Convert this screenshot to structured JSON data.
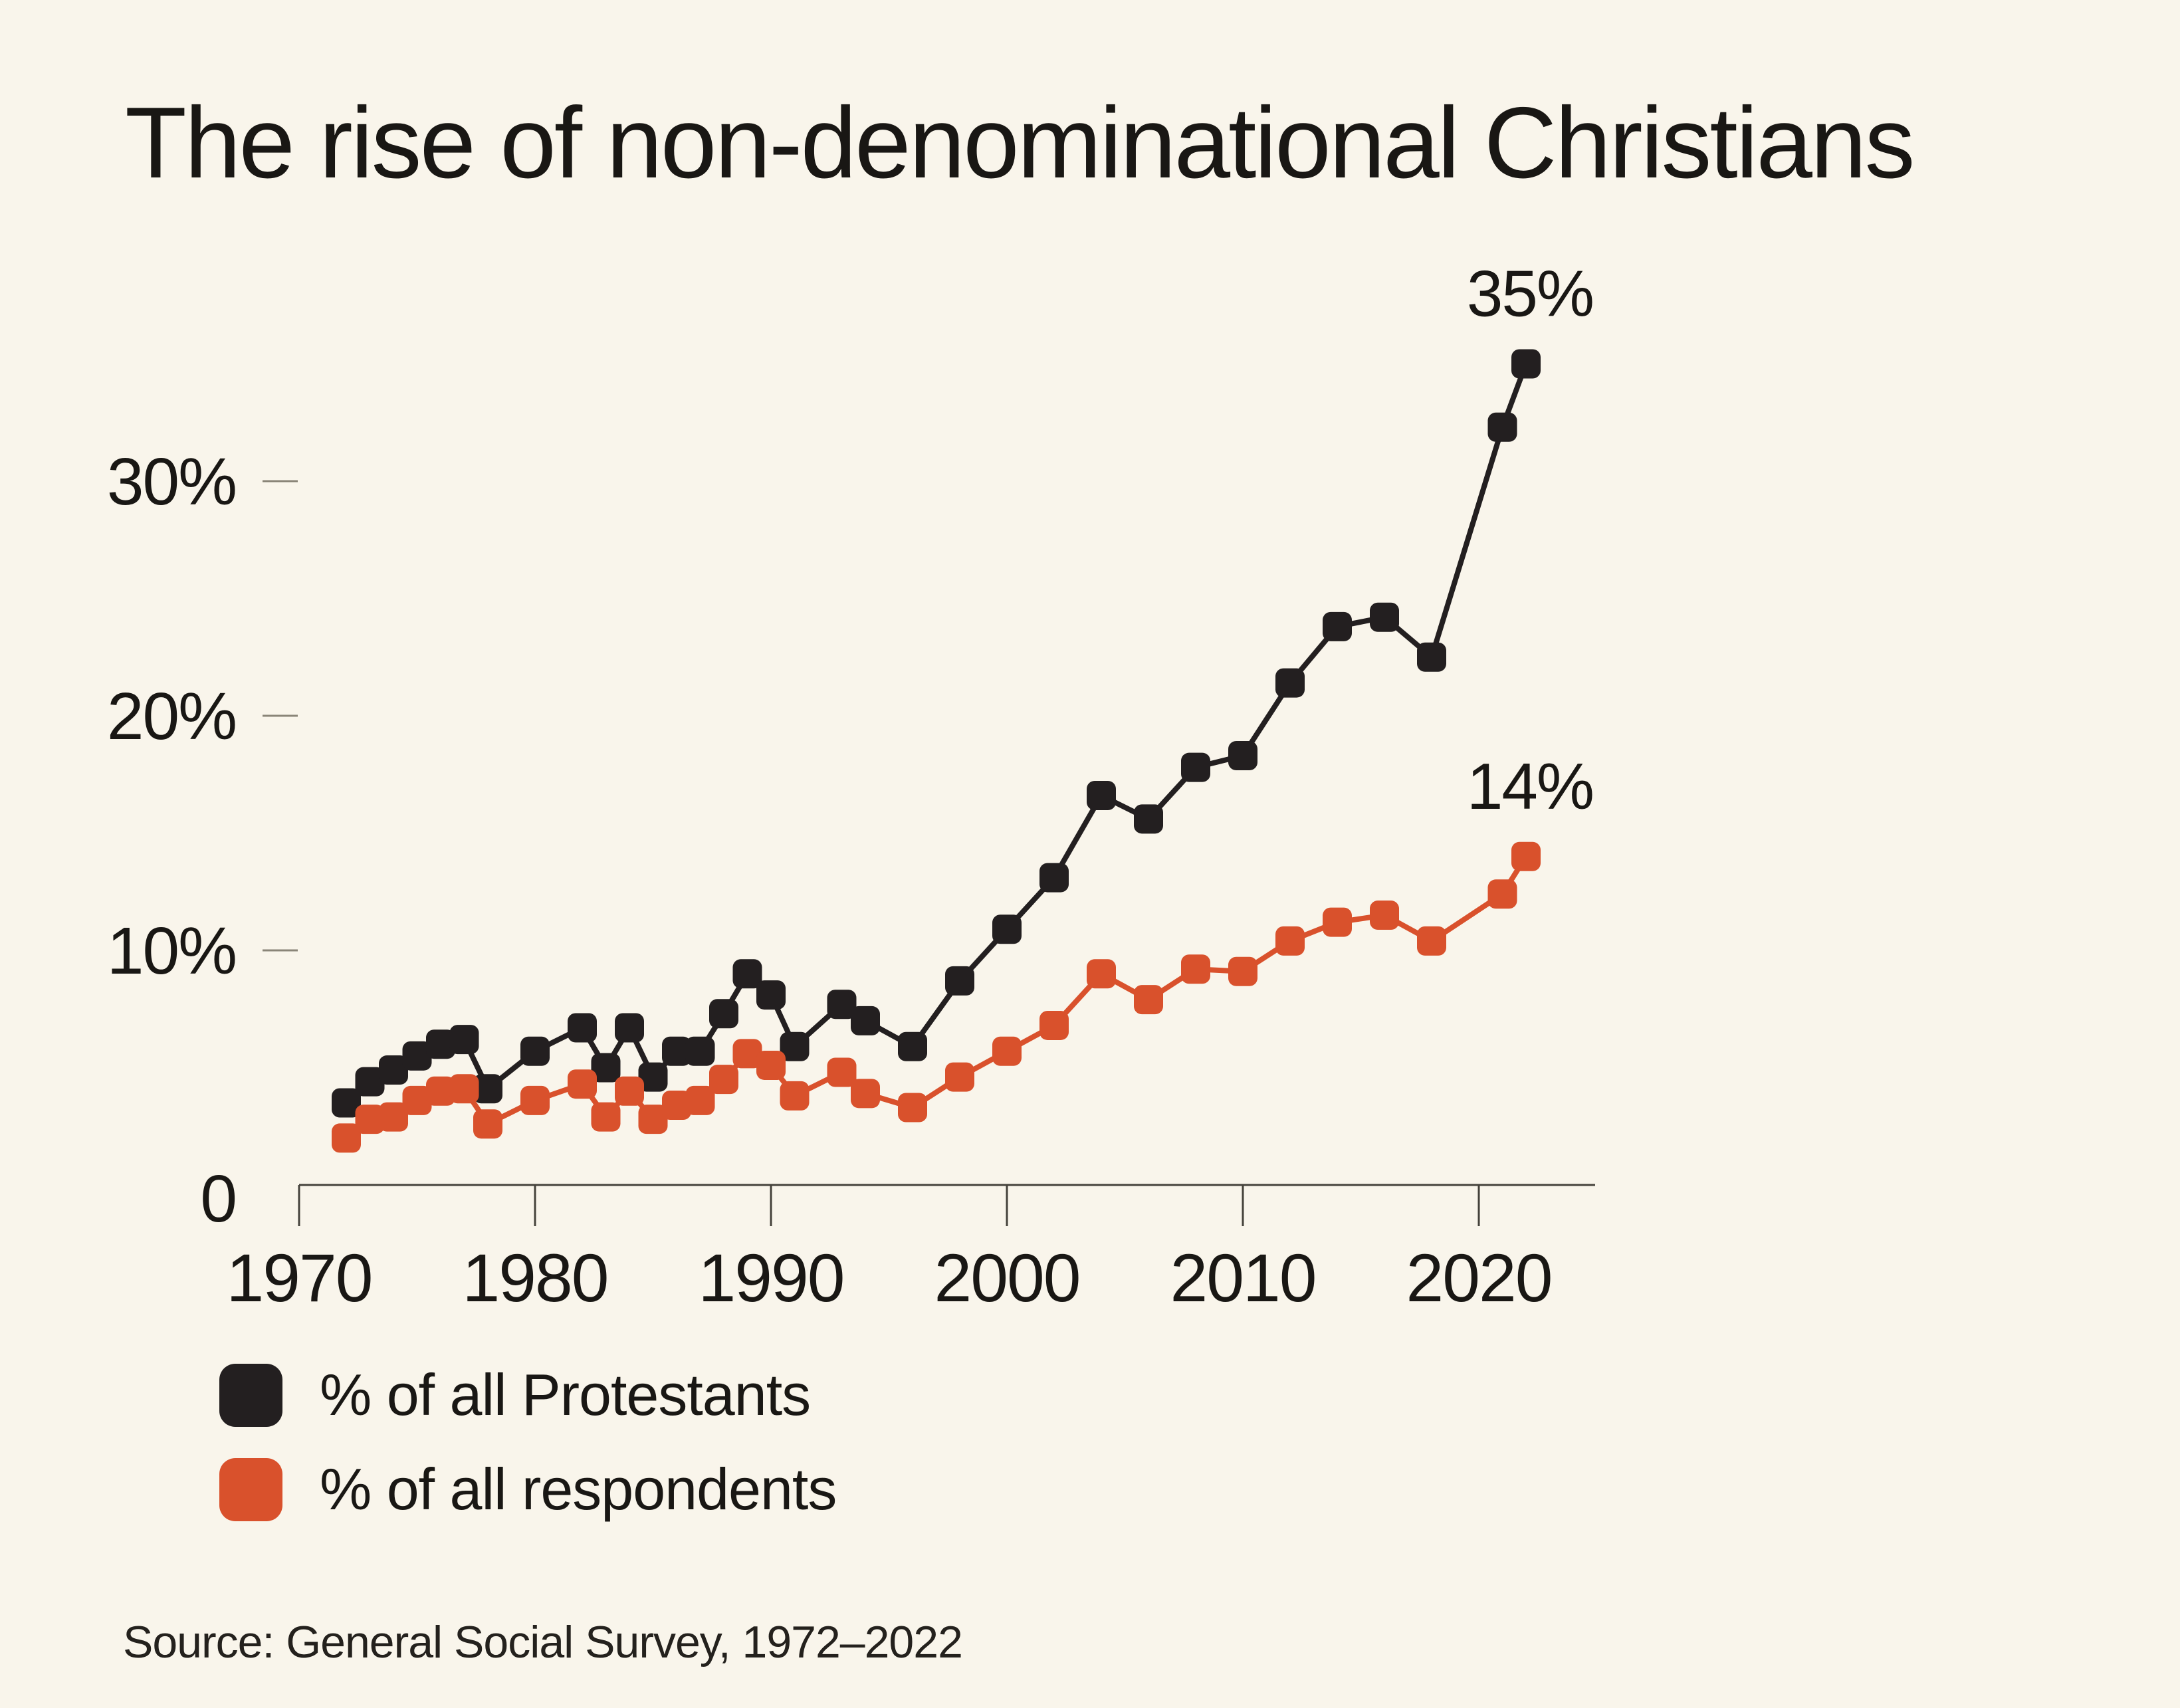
{
  "page": {
    "background": "#f9f5eb"
  },
  "chart_data": {
    "type": "line",
    "title": "The rise of non-denominational Christians",
    "source": "Source: General Social Survey, 1972–2022",
    "x_axis": {
      "range": [
        1970,
        2025
      ],
      "ticks": [
        1970,
        1980,
        1990,
        2000,
        2010,
        2020
      ],
      "tick_labels": [
        "1970",
        "1980",
        "1990",
        "2000",
        "2010",
        "2020"
      ]
    },
    "y_axis": {
      "range": [
        0,
        36
      ],
      "unit": "percent",
      "grid": false,
      "ticks": [
        {
          "value": 30,
          "label": "30%",
          "dash": true
        },
        {
          "value": 20,
          "label": "20%",
          "dash": true
        },
        {
          "value": 10,
          "label": "10%",
          "dash": true
        },
        {
          "value": 0,
          "label": "0",
          "dash": false
        }
      ]
    },
    "x": [
      1972,
      1973,
      1974,
      1975,
      1976,
      1977,
      1978,
      1980,
      1982,
      1983,
      1984,
      1985,
      1986,
      1987,
      1988,
      1989,
      1990,
      1991,
      1993,
      1994,
      1996,
      1998,
      2000,
      2002,
      2004,
      2006,
      2008,
      2010,
      2012,
      2014,
      2016,
      2018,
      2021,
      2022
    ],
    "series": [
      {
        "name": "% of all Protestants",
        "color": "#231f20",
        "marker": "square",
        "values": [
          3.5,
          4.4,
          4.9,
          5.5,
          6.0,
          6.2,
          4.1,
          5.7,
          6.7,
          5.0,
          6.7,
          4.6,
          5.7,
          5.7,
          7.3,
          9.0,
          8.1,
          5.9,
          7.7,
          7.0,
          5.9,
          8.7,
          10.9,
          13.1,
          16.6,
          15.6,
          17.8,
          18.3,
          21.4,
          23.8,
          24.2,
          22.5,
          32.3,
          35.0
        ]
      },
      {
        "name": "% of all respondents",
        "color": "#d9512c",
        "marker": "square",
        "values": [
          2.0,
          2.8,
          2.9,
          3.6,
          4.0,
          4.1,
          2.6,
          3.6,
          4.3,
          2.9,
          4.0,
          2.8,
          3.4,
          3.6,
          4.5,
          5.6,
          5.1,
          3.8,
          4.8,
          3.9,
          3.3,
          4.6,
          5.7,
          6.8,
          9.0,
          7.9,
          9.2,
          9.1,
          10.4,
          11.2,
          11.5,
          10.4,
          12.4,
          14.0
        ]
      }
    ],
    "annotations": [
      {
        "label": "35%",
        "series": 0,
        "at_last_point": true
      },
      {
        "label": "14%",
        "series": 1,
        "at_last_point": true
      }
    ],
    "legend_position": "bottom-left"
  }
}
